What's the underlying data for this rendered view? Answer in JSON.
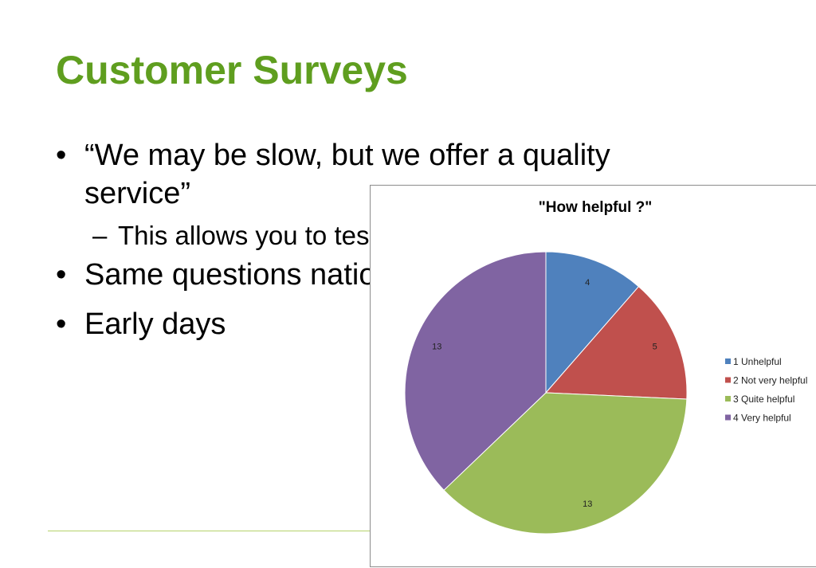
{
  "slide": {
    "title": "Customer Surveys",
    "bullets": [
      "“We may be slow, but we offer a quality service”",
      "Same questions nation-wide",
      "Early days"
    ],
    "sub_bullet": "This allows you to test, prove",
    "bullet_symbol": "•",
    "dash_symbol": "–"
  },
  "colors": {
    "title": "#5f9e1f",
    "footer_line": "#b5d36b"
  },
  "chart_data": {
    "type": "pie",
    "title": "\"How helpful ?\"",
    "categories": [
      "1 Unhelpful",
      "2 Not very helpful",
      "3 Quite helpful",
      "4 Very helpful"
    ],
    "values": [
      4,
      5,
      13,
      13
    ],
    "colors": [
      "#4f81bd",
      "#c0504d",
      "#9bbb59",
      "#8064a2"
    ],
    "legend": "right",
    "data_labels": true
  }
}
